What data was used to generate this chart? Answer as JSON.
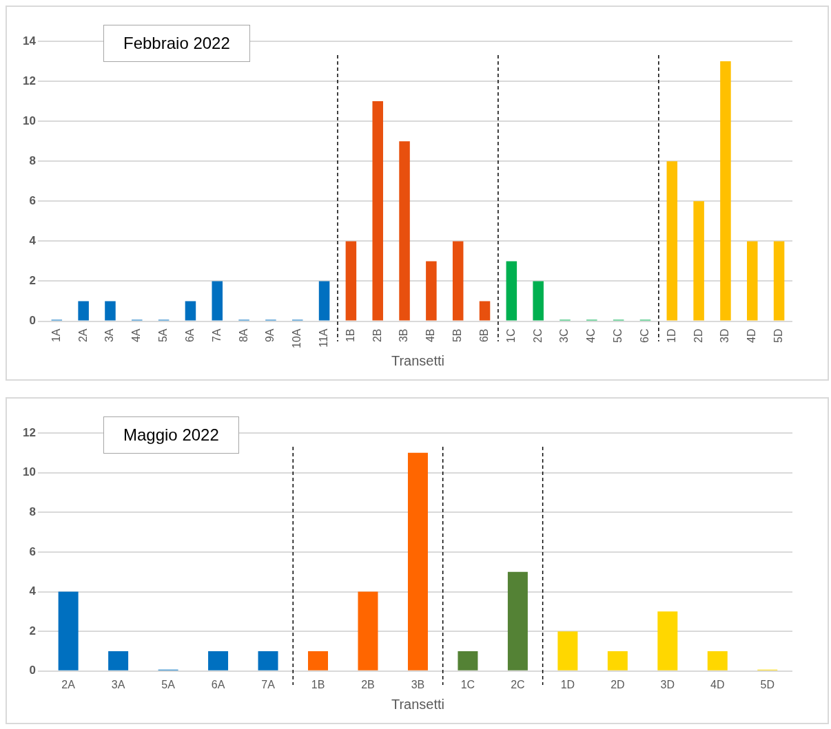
{
  "chart_data": [
    {
      "type": "bar",
      "title": "Febbraio 2022",
      "xlabel": "Transetti",
      "categories": [
        "1A",
        "2A",
        "3A",
        "4A",
        "5A",
        "6A",
        "7A",
        "8A",
        "9A",
        "10A",
        "11A",
        "1B",
        "2B",
        "3B",
        "4B",
        "5B",
        "6B",
        "1C",
        "2C",
        "3C",
        "4C",
        "5C",
        "6C",
        "1D",
        "2D",
        "3D",
        "4D",
        "5D"
      ],
      "values": [
        0,
        1,
        1,
        0,
        0,
        1,
        2,
        0,
        0,
        0,
        2,
        4,
        11,
        9,
        3,
        4,
        1,
        3,
        2,
        0,
        0,
        0,
        0,
        8,
        6,
        13,
        4,
        4
      ],
      "colors": [
        "#0070c0",
        "#0070c0",
        "#0070c0",
        "#0070c0",
        "#0070c0",
        "#0070c0",
        "#0070c0",
        "#0070c0",
        "#0070c0",
        "#0070c0",
        "#0070c0",
        "#e8500e",
        "#e8500e",
        "#e8500e",
        "#e8500e",
        "#e8500e",
        "#e8500e",
        "#00b050",
        "#00b050",
        "#00b050",
        "#00b050",
        "#00b050",
        "#00b050",
        "#ffc000",
        "#ffc000",
        "#ffc000",
        "#ffc000",
        "#ffc000"
      ],
      "ylim": [
        0,
        14
      ],
      "yticks": [
        0,
        2,
        4,
        6,
        8,
        10,
        12,
        14
      ],
      "grid": "y",
      "legend": false
    },
    {
      "type": "bar",
      "title": "Maggio 2022",
      "xlabel": "Transetti",
      "categories": [
        "2A",
        "3A",
        "5A",
        "6A",
        "7A",
        "1B",
        "2B",
        "3B",
        "1C",
        "2C",
        "1D",
        "2D",
        "3D",
        "4D",
        "5D"
      ],
      "values": [
        4,
        1,
        0,
        1,
        1,
        1,
        4,
        11,
        1,
        5,
        2,
        1,
        3,
        1,
        0
      ],
      "colors": [
        "#0070c0",
        "#0070c0",
        "#0070c0",
        "#0070c0",
        "#0070c0",
        "#ff6600",
        "#ff6600",
        "#ff6600",
        "#548235",
        "#548235",
        "#ffd700",
        "#ffd700",
        "#ffd700",
        "#ffd700",
        "#ffd700"
      ],
      "ylim": [
        0,
        12
      ],
      "yticks": [
        0,
        2,
        4,
        6,
        8,
        10,
        12
      ],
      "grid": "y",
      "legend": false
    }
  ]
}
